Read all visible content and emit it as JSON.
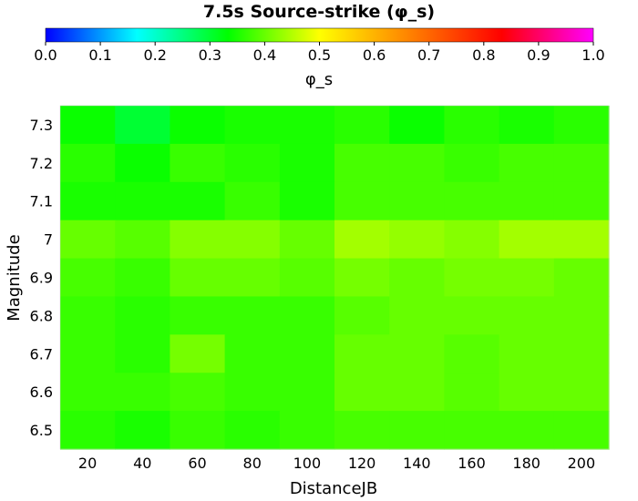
{
  "chart_data": {
    "type": "heatmap",
    "title": "7.5s Source-strike (φ_s)",
    "xlabel": "DistanceJB",
    "ylabel": "Magnitude",
    "x_ticks": [
      "20",
      "40",
      "60",
      "80",
      "100",
      "120",
      "140",
      "160",
      "180",
      "200"
    ],
    "y_ticks": [
      "6.5",
      "6.6",
      "6.7",
      "6.8",
      "6.9",
      "7",
      "7.1",
      "7.2",
      "7.3"
    ],
    "colorbar": {
      "label": "φ_s",
      "min": 0.0,
      "max": 1.0,
      "ticks": [
        "0.0",
        "0.1",
        "0.2",
        "0.3",
        "0.4",
        "0.5",
        "0.6",
        "0.7",
        "0.8",
        "0.9",
        "1.0"
      ]
    },
    "x": [
      10,
      30,
      50,
      70,
      90,
      110,
      130,
      150,
      170,
      190,
      210
    ],
    "y": [
      6.45,
      6.55,
      6.65,
      6.75,
      6.85,
      6.95,
      7.05,
      7.15,
      7.25,
      7.35
    ],
    "rows_top_to_bottom": [
      [
        0.34,
        0.3,
        0.34,
        0.35,
        0.35,
        0.36,
        0.34,
        0.36,
        0.35,
        0.36
      ],
      [
        0.36,
        0.34,
        0.37,
        0.36,
        0.35,
        0.38,
        0.38,
        0.37,
        0.38,
        0.38
      ],
      [
        0.35,
        0.35,
        0.35,
        0.37,
        0.35,
        0.38,
        0.38,
        0.38,
        0.38,
        0.38
      ],
      [
        0.4,
        0.39,
        0.42,
        0.42,
        0.4,
        0.44,
        0.43,
        0.42,
        0.44,
        0.44
      ],
      [
        0.38,
        0.37,
        0.4,
        0.4,
        0.39,
        0.41,
        0.4,
        0.41,
        0.41,
        0.4
      ],
      [
        0.37,
        0.36,
        0.37,
        0.37,
        0.37,
        0.39,
        0.4,
        0.4,
        0.4,
        0.4
      ],
      [
        0.37,
        0.36,
        0.41,
        0.37,
        0.37,
        0.4,
        0.4,
        0.39,
        0.4,
        0.4
      ],
      [
        0.37,
        0.37,
        0.38,
        0.37,
        0.37,
        0.4,
        0.4,
        0.39,
        0.4,
        0.4
      ],
      [
        0.36,
        0.35,
        0.37,
        0.36,
        0.37,
        0.38,
        0.38,
        0.38,
        0.38,
        0.38
      ]
    ]
  }
}
